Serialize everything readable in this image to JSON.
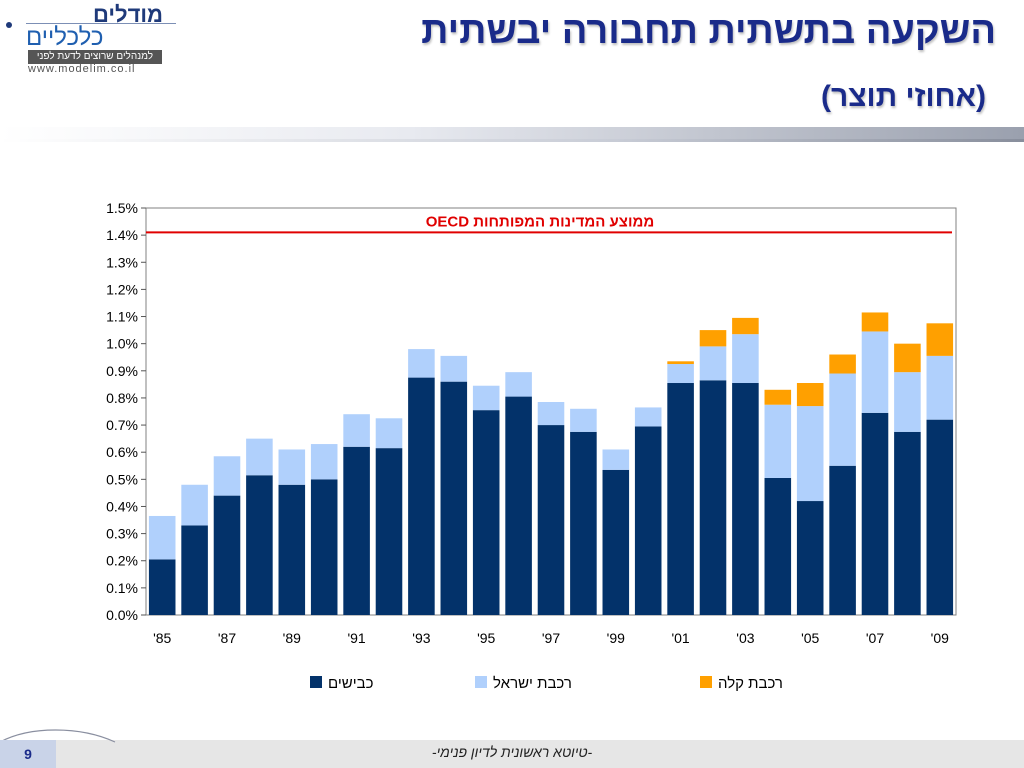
{
  "logo": {
    "name_line1": "מודלים",
    "name_line2": "כלכליים",
    "tagline": "למנהלים שרוצים לדעת לפני",
    "url": "www.modelim.co.il"
  },
  "slide": {
    "title": "השקעה בתשתית תחבורה יבשתית",
    "subtitle": "(אחוזי תוצר)",
    "page_number": "9",
    "footer_note": "-טיוטא ראשונית לדיון פנימי-"
  },
  "colors": {
    "roads": "#03326a",
    "israel_rail": "#b0d0fc",
    "light_rail": "#ffa000",
    "oecd_line": "#e00000",
    "title": "#1a2b8a"
  },
  "chart_data": {
    "type": "bar",
    "stacked": true,
    "categories": [
      "'85",
      "'86",
      "'87",
      "'88",
      "'89",
      "'90",
      "'91",
      "'92",
      "'93",
      "'94",
      "'95",
      "'96",
      "'97",
      "'98",
      "'99",
      "'00",
      "'01",
      "'02",
      "'03",
      "'04",
      "'05",
      "'06",
      "'07",
      "'08",
      "'09"
    ],
    "x_tick_labels": [
      "'85",
      "",
      "'87",
      "",
      "'89",
      "",
      "'91",
      "",
      "'93",
      "",
      "'95",
      "",
      "'97",
      "",
      "'99",
      "",
      "'01",
      "",
      "'03",
      "",
      "'05",
      "",
      "'07",
      "",
      "'09"
    ],
    "series": [
      {
        "name": "כבישים",
        "color": "#03326a",
        "values": [
          0.205,
          0.33,
          0.44,
          0.515,
          0.48,
          0.5,
          0.62,
          0.615,
          0.875,
          0.86,
          0.755,
          0.805,
          0.7,
          0.675,
          0.535,
          0.695,
          0.855,
          0.865,
          0.855,
          0.505,
          0.42,
          0.55,
          0.745,
          0.675,
          0.72
        ]
      },
      {
        "name": "רכבת ישראל",
        "color": "#b0d0fc",
        "values": [
          0.16,
          0.15,
          0.145,
          0.135,
          0.13,
          0.13,
          0.12,
          0.11,
          0.105,
          0.095,
          0.09,
          0.09,
          0.085,
          0.085,
          0.075,
          0.07,
          0.07,
          0.125,
          0.18,
          0.27,
          0.35,
          0.34,
          0.3,
          0.22,
          0.235
        ]
      },
      {
        "name": "רכבת קלה",
        "color": "#ffa000",
        "values": [
          0,
          0,
          0,
          0,
          0,
          0,
          0,
          0,
          0,
          0,
          0,
          0,
          0,
          0,
          0,
          0,
          0.01,
          0.06,
          0.06,
          0.055,
          0.085,
          0.07,
          0.07,
          0.105,
          0.12
        ]
      }
    ],
    "ylim": [
      0,
      1.5
    ],
    "y_ticks": [
      0.0,
      0.1,
      0.2,
      0.3,
      0.4,
      0.5,
      0.6,
      0.7,
      0.8,
      0.9,
      1.0,
      1.1,
      1.2,
      1.3,
      1.4,
      1.5
    ],
    "y_tick_format": "percent_one_decimal",
    "reference_line": {
      "label": "ממוצע המדינות המפותחות OECD",
      "value": 1.41,
      "color": "#e00000"
    },
    "legend_position": "bottom",
    "grid": false
  }
}
